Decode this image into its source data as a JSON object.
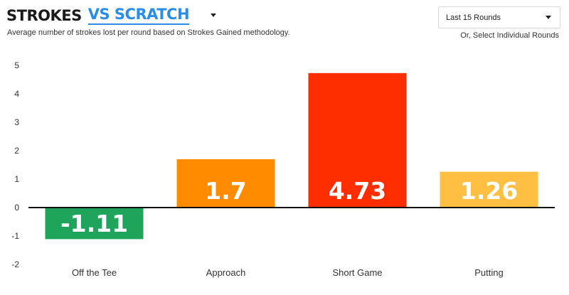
{
  "header": {
    "title_strong": "STROKES",
    "title_accent": "VS SCRATCH",
    "subtitle": "Average number of strokes lost per round based on Strokes Gained methodology."
  },
  "controls": {
    "range_value": "Last 15 Rounds",
    "select_rounds_link": "Or, Select Individual Rounds"
  },
  "icons": {
    "title_dropdown": "chevron-down-icon",
    "range_dropdown": "chevron-down-icon"
  },
  "chart_data": {
    "type": "bar",
    "title": "",
    "xlabel": "",
    "ylabel": "",
    "categories": [
      "Off the Tee",
      "Approach",
      "Short Game",
      "Putting"
    ],
    "values": [
      -1.11,
      1.7,
      4.73,
      1.26
    ],
    "value_labels": [
      "-1.11",
      "1.7",
      "4.73",
      "1.26"
    ],
    "colors": [
      "#1fa45c",
      "#ff8c00",
      "#ff2e00",
      "#ffbf42"
    ],
    "ylim": [
      -2,
      5
    ],
    "yticks": [
      "-2",
      "-1",
      "0",
      "1",
      "2",
      "3",
      "4",
      "5"
    ],
    "grid": false,
    "legend": "none"
  }
}
